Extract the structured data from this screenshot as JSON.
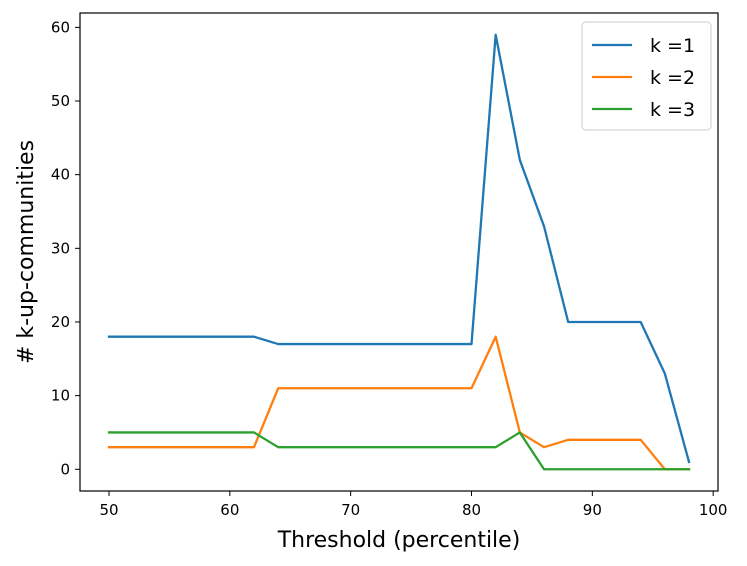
{
  "chart_data": {
    "type": "line",
    "title": "",
    "xlabel": "Threshold (percentile)",
    "ylabel": "# k-up-communities",
    "xlim": [
      47.6,
      100.4
    ],
    "ylim": [
      -2.95,
      61.95
    ],
    "xticks": [
      50,
      60,
      70,
      80,
      90,
      100
    ],
    "yticks": [
      0,
      10,
      20,
      30,
      40,
      50,
      60
    ],
    "grid": false,
    "legend_position": "upper right",
    "x": [
      50,
      52,
      54,
      56,
      58,
      60,
      62,
      64,
      66,
      68,
      70,
      72,
      74,
      76,
      78,
      80,
      82,
      84,
      86,
      88,
      90,
      92,
      94,
      96,
      98
    ],
    "series": [
      {
        "name": "k =1",
        "color": "#1f77b4",
        "values": [
          18,
          18,
          18,
          18,
          18,
          18,
          18,
          17,
          17,
          17,
          17,
          17,
          17,
          17,
          17,
          17,
          59,
          42,
          33,
          20,
          20,
          20,
          20,
          13,
          1
        ]
      },
      {
        "name": "k =2",
        "color": "#ff7f0e",
        "values": [
          3,
          3,
          3,
          3,
          3,
          3,
          3,
          11,
          11,
          11,
          11,
          11,
          11,
          11,
          11,
          11,
          18,
          5,
          3,
          4,
          4,
          4,
          4,
          0,
          0
        ]
      },
      {
        "name": "k =3",
        "color": "#2ca02c",
        "values": [
          5,
          5,
          5,
          5,
          5,
          5,
          5,
          3,
          3,
          3,
          3,
          3,
          3,
          3,
          3,
          3,
          3,
          5,
          0,
          0,
          0,
          0,
          0,
          0,
          0
        ]
      }
    ]
  }
}
